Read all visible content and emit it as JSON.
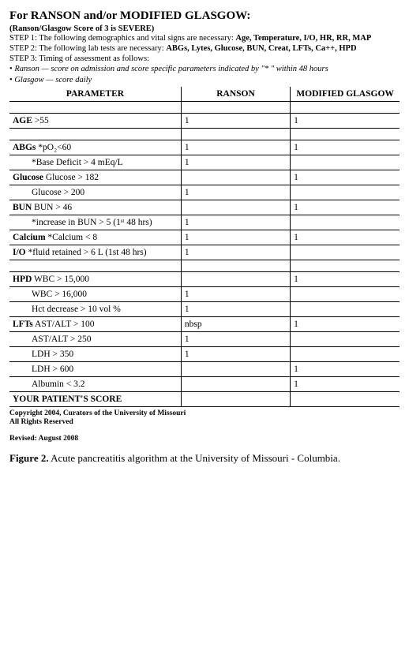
{
  "header": {
    "title": "For RANSON and/or MODIFIED GLASGOW:",
    "subtitle": "(Ranson/Glasgow Score of 3 is SEVERE)",
    "step1_label": "STEP 1:",
    "step1_text": " The following demographics and vital signs are necessary: ",
    "step1_bold": "Age, Temperature, I/O, HR, RR, MAP",
    "step2_label": "STEP 2:",
    "step2_text": " The following lab tests are necessary: ",
    "step2_bold": "ABGs, Lytes, Glucose, BUN, Creat, LFTs, Ca++, HPD",
    "step3_label": "STEP 3:",
    "step3_text": " Timing of assessment as follows:",
    "bullet1": "Ranson — score on admission and score specific parameters indicated by \"* \" within 48 hours",
    "bullet2": "Glasgow — score daily"
  },
  "table": {
    "columns": [
      "PARAMETER",
      "RANSON",
      "MODIFIED GLASGOW"
    ],
    "rows": [
      {
        "p": "",
        "r": "",
        "g": "",
        "spacer": true
      },
      {
        "p_bold": "AGE",
        "p_rest": " >55",
        "r": "1",
        "g": "1"
      },
      {
        "p": "",
        "r": "",
        "g": "",
        "spacer": true
      },
      {
        "p_bold": "ABGs",
        "p_rest": " *pO₂<60",
        "r": "1",
        "g": "1"
      },
      {
        "p": "*Base Deficit > 4 mEq/L",
        "r": "1",
        "g": "",
        "indent": true
      },
      {
        "p_bold": "Glucose",
        "p_rest": " Glucose > 182",
        "r": "",
        "g": "1"
      },
      {
        "p": "Glucose > 200",
        "r": "1",
        "g": "",
        "indent": true
      },
      {
        "p_bold": "BUN",
        "p_rest": " BUN > 46",
        "r": "",
        "g": "1"
      },
      {
        "p": "*increase in BUN > 5 (1ˢᵗ 48 hrs)",
        "r": "1",
        "g": "",
        "indent": true
      },
      {
        "p_bold": "Calcium",
        "p_rest": " *Calcium < 8",
        "r": "1",
        "g": "1"
      },
      {
        "p_bold": "I/O",
        "p_rest": " *fluid retained > 6 L (1st 48 hrs)",
        "r": "1",
        "g": ""
      },
      {
        "p": "",
        "r": "",
        "g": "",
        "spacer": true
      },
      {
        "p_bold": "HPD",
        "p_rest": " WBC > 15,000",
        "r": "",
        "g": "1"
      },
      {
        "p": "WBC > 16,000",
        "r": "1",
        "g": "",
        "indent": true
      },
      {
        "p": "Hct decrease > 10 vol %",
        "r": "1",
        "g": "",
        "indent": true
      },
      {
        "p_bold": "LFTs",
        "p_rest": " AST/ALT > 100",
        "r": "nbsp",
        "g": "1"
      },
      {
        "p": "AST/ALT > 250",
        "r": "1",
        "g": "",
        "indent": true
      },
      {
        "p": "LDH > 350",
        "r": "1",
        "g": "",
        "indent": true
      },
      {
        "p": "LDH > 600",
        "r": "",
        "g": "1",
        "indent": true
      },
      {
        "p": "Albumin < 3.2",
        "r": "",
        "g": "1",
        "indent": true
      },
      {
        "p_bold": "YOUR PATIENT'S SCORE",
        "p_rest": "",
        "r": "",
        "g": ""
      }
    ]
  },
  "footer": {
    "copyright_line1": "Copyright 2004, Curators of the University of Missouri",
    "copyright_line2": "All Rights Reserved",
    "revised": "Revised: August 2008",
    "fig_label": "Figure 2.",
    "fig_text": " Acute pancreatitis algorithm at the University of Missouri - Columbia."
  }
}
